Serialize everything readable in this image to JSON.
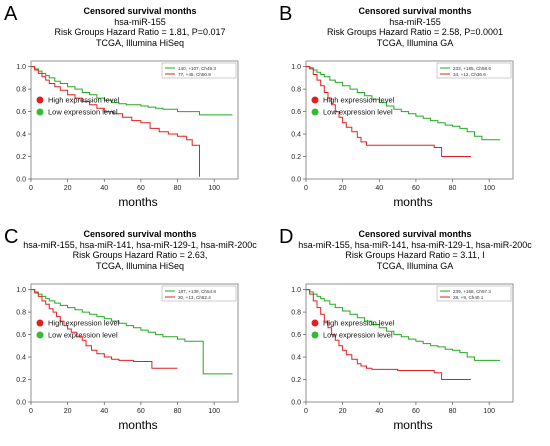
{
  "chart_data": [
    {
      "id": "A",
      "type": "line",
      "panel_label": "A",
      "title": "Censored survival months",
      "subtitle_lines": [
        "hsa-miR-155",
        "Risk Groups Hazard Ratio = 1.81, P=0.017",
        "TCGA, Illumina HiSeq"
      ],
      "xlabel": "months",
      "xlim": [
        0,
        113
      ],
      "ylim": [
        0,
        1.05
      ],
      "xticks": [
        0,
        20,
        40,
        60,
        80,
        100
      ],
      "yticks": [
        0.0,
        0.2,
        0.4,
        0.6,
        0.8,
        1.0
      ],
      "yticklabels": [
        "0.0",
        "0.2",
        "0.4",
        "0.6",
        "0.8",
        "1.0"
      ],
      "legend_inset": [
        "140, +107, Ch49.3",
        "77, +45, Ch50.9"
      ],
      "legend": [
        {
          "label": "High expression level",
          "color": "#e02020"
        },
        {
          "label": "Low expression level",
          "color": "#33bb33"
        }
      ],
      "series": [
        {
          "color": "#22aa22",
          "x": [
            0,
            2,
            4,
            6,
            8,
            10,
            13,
            16,
            20,
            24,
            28,
            32,
            36,
            40,
            44,
            48,
            52,
            56,
            60,
            64,
            68,
            72,
            76,
            80,
            84,
            88,
            92,
            96,
            100,
            104,
            110
          ],
          "y": [
            1.0,
            0.98,
            0.96,
            0.94,
            0.92,
            0.9,
            0.87,
            0.85,
            0.82,
            0.8,
            0.77,
            0.75,
            0.72,
            0.7,
            0.68,
            0.67,
            0.66,
            0.66,
            0.65,
            0.64,
            0.63,
            0.62,
            0.62,
            0.6,
            0.6,
            0.6,
            0.57,
            0.57,
            0.57,
            0.57,
            0.57
          ]
        },
        {
          "color": "#e02020",
          "x": [
            0,
            2,
            4,
            6,
            8,
            10,
            13,
            16,
            20,
            24,
            28,
            32,
            36,
            40,
            45,
            50,
            55,
            60,
            65,
            70,
            75,
            80,
            82,
            85,
            88,
            90,
            92,
            92.01
          ],
          "y": [
            1.0,
            0.97,
            0.94,
            0.91,
            0.88,
            0.85,
            0.82,
            0.79,
            0.75,
            0.72,
            0.69,
            0.66,
            0.63,
            0.6,
            0.58,
            0.55,
            0.52,
            0.5,
            0.45,
            0.42,
            0.4,
            0.38,
            0.38,
            0.35,
            0.3,
            0.3,
            0.3,
            0.02
          ]
        }
      ]
    },
    {
      "id": "B",
      "type": "line",
      "panel_label": "B",
      "title": "Censored survival months",
      "subtitle_lines": [
        "hsa-miR-155",
        "Risk Groups Hazard Ratio = 2.58, P=0.0001",
        "TCGA, Illumina GA"
      ],
      "xlabel": "months",
      "xlim": [
        0,
        113
      ],
      "ylim": [
        0,
        1.05
      ],
      "xticks": [
        0,
        20,
        40,
        60,
        80,
        100
      ],
      "yticks": [
        0.0,
        0.2,
        0.4,
        0.6,
        0.8,
        1.0
      ],
      "yticklabels": [
        "0.0",
        "0.2",
        "0.4",
        "0.6",
        "0.8",
        "1.0"
      ],
      "legend_inset": [
        "233, +185, Ch58.6",
        "34, +12, Ch36.6"
      ],
      "legend": [
        {
          "label": "High expression level",
          "color": "#e02020"
        },
        {
          "label": "Low expression level",
          "color": "#33bb33"
        }
      ],
      "series": [
        {
          "color": "#22aa22",
          "x": [
            0,
            2,
            4,
            6,
            8,
            10,
            13,
            16,
            20,
            24,
            28,
            32,
            36,
            40,
            44,
            48,
            52,
            56,
            60,
            64,
            68,
            72,
            76,
            80,
            84,
            88,
            92,
            96,
            100,
            106
          ],
          "y": [
            1.0,
            0.99,
            0.97,
            0.95,
            0.93,
            0.91,
            0.88,
            0.86,
            0.83,
            0.8,
            0.77,
            0.74,
            0.71,
            0.68,
            0.65,
            0.62,
            0.6,
            0.58,
            0.56,
            0.54,
            0.52,
            0.5,
            0.48,
            0.47,
            0.45,
            0.42,
            0.38,
            0.35,
            0.35,
            0.35
          ]
        },
        {
          "color": "#e02020",
          "x": [
            0,
            2,
            4,
            6,
            8,
            10,
            12,
            14,
            16,
            18,
            20,
            22,
            25,
            28,
            30,
            33,
            36,
            40,
            45,
            50,
            55,
            60,
            65,
            70,
            74,
            78,
            82,
            86,
            90
          ],
          "y": [
            1.0,
            0.98,
            0.93,
            0.88,
            0.83,
            0.77,
            0.72,
            0.66,
            0.6,
            0.55,
            0.5,
            0.46,
            0.42,
            0.37,
            0.33,
            0.3,
            0.3,
            0.3,
            0.3,
            0.3,
            0.3,
            0.3,
            0.3,
            0.28,
            0.2,
            0.2,
            0.2,
            0.2,
            0.2
          ]
        }
      ]
    },
    {
      "id": "C",
      "type": "line",
      "panel_label": "C",
      "title": "Censored survival months",
      "subtitle_lines": [
        "hsa-miR-155, hsa-miR-141, hsa-miR-129-1, hsa-miR-200c",
        "Risk Groups Hazard Ratio = 2.63,",
        "TCGA, Illumina HiSeq"
      ],
      "xlabel": "months",
      "xlim": [
        0,
        113
      ],
      "ylim": [
        0,
        1.05
      ],
      "xticks": [
        0,
        20,
        40,
        60,
        80,
        100
      ],
      "yticks": [
        0.0,
        0.2,
        0.4,
        0.6,
        0.8,
        1.0
      ],
      "yticklabels": [
        "0.0",
        "0.2",
        "0.4",
        "0.6",
        "0.8",
        "1.0"
      ],
      "legend_inset": [
        "187, +139, Ch54.8",
        "30, +13, Ch52.4"
      ],
      "legend": [
        {
          "label": "High expression level",
          "color": "#e02020"
        },
        {
          "label": "Low expression level",
          "color": "#33bb33"
        }
      ],
      "series": [
        {
          "color": "#22aa22",
          "x": [
            0,
            2,
            4,
            6,
            8,
            10,
            13,
            16,
            20,
            24,
            28,
            32,
            36,
            40,
            44,
            48,
            52,
            56,
            60,
            64,
            68,
            72,
            76,
            80,
            84,
            88,
            92,
            94,
            96,
            100,
            110
          ],
          "y": [
            1.0,
            0.98,
            0.96,
            0.94,
            0.92,
            0.9,
            0.88,
            0.86,
            0.84,
            0.82,
            0.8,
            0.78,
            0.76,
            0.74,
            0.72,
            0.7,
            0.68,
            0.66,
            0.64,
            0.62,
            0.6,
            0.58,
            0.58,
            0.56,
            0.54,
            0.54,
            0.54,
            0.25,
            0.25,
            0.25,
            0.25
          ]
        },
        {
          "color": "#e02020",
          "x": [
            0,
            2,
            4,
            6,
            8,
            10,
            12,
            14,
            16,
            18,
            20,
            22,
            25,
            28,
            30,
            33,
            36,
            40,
            44,
            48,
            52,
            56,
            60,
            64,
            66,
            70,
            74,
            78,
            80
          ],
          "y": [
            1.0,
            0.97,
            0.94,
            0.9,
            0.87,
            0.83,
            0.8,
            0.76,
            0.72,
            0.68,
            0.65,
            0.62,
            0.58,
            0.55,
            0.5,
            0.46,
            0.43,
            0.4,
            0.38,
            0.37,
            0.37,
            0.36,
            0.36,
            0.36,
            0.3,
            0.3,
            0.3,
            0.3,
            0.3
          ]
        }
      ]
    },
    {
      "id": "D",
      "type": "line",
      "panel_label": "D",
      "title": "Censored survival months",
      "subtitle_lines": [
        "hsa-miR-155, hsa-miR-141, hsa-miR-129-1, hsa-miR-200c",
        "Risk Groups Hazard Ratio = 3.11, I",
        "TCGA, Illumina GA"
      ],
      "xlabel": "months",
      "xlim": [
        0,
        113
      ],
      "ylim": [
        0,
        1.05
      ],
      "xticks": [
        0,
        20,
        40,
        60,
        80,
        100
      ],
      "yticks": [
        0.0,
        0.2,
        0.4,
        0.6,
        0.8,
        1.0
      ],
      "yticklabels": [
        "0.0",
        "0.2",
        "0.4",
        "0.6",
        "0.8",
        "1.0"
      ],
      "legend_inset": [
        "239, +168, Ch57.3",
        "28, +9, Ch40.1"
      ],
      "legend": [
        {
          "label": "High expression level",
          "color": "#e02020"
        },
        {
          "label": "Low expression level",
          "color": "#33bb33"
        }
      ],
      "series": [
        {
          "color": "#22aa22",
          "x": [
            0,
            2,
            4,
            6,
            8,
            10,
            13,
            16,
            20,
            24,
            28,
            32,
            36,
            40,
            44,
            48,
            52,
            56,
            60,
            64,
            68,
            72,
            76,
            80,
            84,
            88,
            92,
            96,
            100,
            106
          ],
          "y": [
            1.0,
            0.98,
            0.96,
            0.94,
            0.92,
            0.9,
            0.87,
            0.84,
            0.81,
            0.78,
            0.75,
            0.72,
            0.69,
            0.66,
            0.63,
            0.6,
            0.58,
            0.56,
            0.54,
            0.52,
            0.5,
            0.49,
            0.47,
            0.46,
            0.44,
            0.4,
            0.37,
            0.37,
            0.37,
            0.37
          ]
        },
        {
          "color": "#e02020",
          "x": [
            0,
            2,
            4,
            6,
            8,
            10,
            12,
            14,
            16,
            18,
            20,
            22,
            25,
            28,
            30,
            33,
            36,
            40,
            45,
            50,
            55,
            60,
            65,
            70,
            74,
            78,
            82,
            86,
            90
          ],
          "y": [
            1.0,
            0.96,
            0.9,
            0.84,
            0.78,
            0.72,
            0.66,
            0.6,
            0.55,
            0.5,
            0.46,
            0.42,
            0.38,
            0.34,
            0.32,
            0.3,
            0.29,
            0.29,
            0.29,
            0.28,
            0.28,
            0.28,
            0.28,
            0.26,
            0.2,
            0.2,
            0.2,
            0.2,
            0.2
          ]
        }
      ]
    }
  ]
}
